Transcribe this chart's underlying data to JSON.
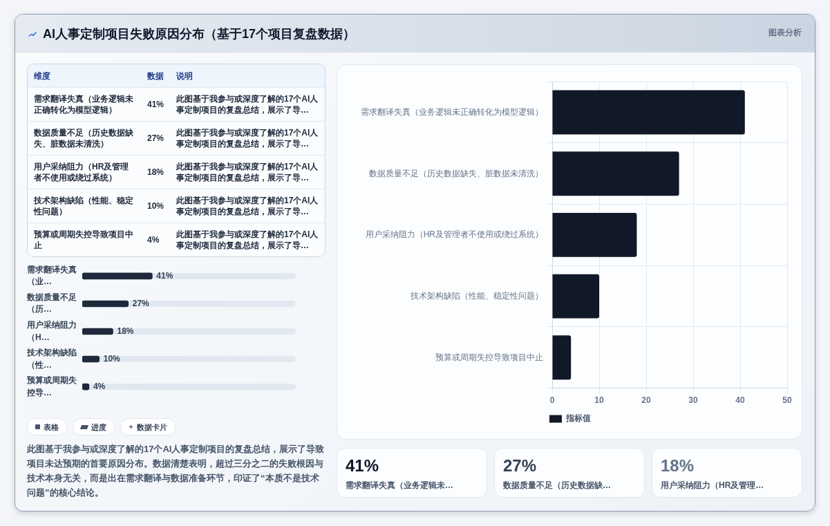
{
  "chart_data": [
    {
      "type": "bar",
      "orientation": "horizontal",
      "title": "AI人事定制项目失败原因分布（基于17个项目复盘数据）",
      "annotations": [
        "图表分析"
      ],
      "categories": [
        "需求翻译失真（业务逻辑未正确转化为模型逻辑）",
        "数据质量不足（历史数据缺失、脏数据未清洗）",
        "用户采纳阻力（HR及管理者不使用或绕过系统）",
        "技术架构缺陷（性能、稳定性问题）",
        "预算或周期失控导致项目中止"
      ],
      "series": [
        {
          "name": "指标值",
          "color": "#111827",
          "values": [
            41,
            27,
            18,
            10,
            4
          ]
        }
      ],
      "xlim": [
        0,
        50
      ],
      "xticks": [
        0,
        10,
        20,
        30,
        40,
        50
      ],
      "grid": true,
      "legend": "bottom left"
    },
    {
      "type": "other",
      "categories": [
        "需求翻译失真（业务逻辑未正确转化为模型逻辑）",
        "数据质量不足（历史数据缺失、脏数据未清洗）",
        "用户采纳阻力（HR及管理者不使用或绕过系统）",
        "技术架构缺陷（性能、稳定性问题）",
        "预算或周期失控导致项目中止"
      ],
      "value_labels": [
        "41%",
        "27%",
        "18%",
        "10%",
        "4%"
      ],
      "annotations": [
        "维度",
        "数据",
        "说明",
        "此图基于我参与或深度了解的17个AI人事定制项目的复盘总结，展示了导…",
        "此图基于我参与或深度了解的17个AI人事定制项目的复盘总结，展示了导…",
        "此图基于我参与或深度了解的17个AI人事定制项目的复盘总结，展示了导…",
        "此图基于我参与或深度了解的17个AI人事定制项目的复盘总结，展示了导…",
        "此图基于我参与或深度了解的17个AI人事定制项目的复盘总结，展示了导…"
      ]
    },
    {
      "type": "bar",
      "orientation": "horizontal",
      "categories": [
        "需求翻译失真（业…",
        "数据质量不足（历…",
        "用户采纳阻力（H…",
        "技术架构缺陷（性…",
        "预算或周期失控导…"
      ],
      "values": [
        41,
        27,
        18,
        10,
        4
      ],
      "value_labels": [
        "41%",
        "27%",
        "18%",
        "10%",
        "4%"
      ],
      "color": "#1e293b",
      "xlim": [
        0,
        125
      ],
      "tick_labels": "y"
    },
    {
      "type": "other",
      "annotations": [
        "表格",
        "进度",
        "数据卡片",
        "此图基于我参与或深度了解的17个AI人事定制项目的复盘总结，展示了导致项目未达预期的首要原因分布。数据清楚表明，超过三分之二的失败根因与技术本身无关，而是出在需求翻译与数据准备环节，印证了“本质不是技术问题”的核心结论。"
      ]
    },
    {
      "type": "other",
      "categories": [
        "需求翻译失真（业务逻辑未…",
        "数据质量不足（历史数据缺…",
        "用户采纳阻力（HR及管理…"
      ],
      "value_labels": [
        "41%",
        "27%",
        "18%"
      ]
    }
  ]
}
